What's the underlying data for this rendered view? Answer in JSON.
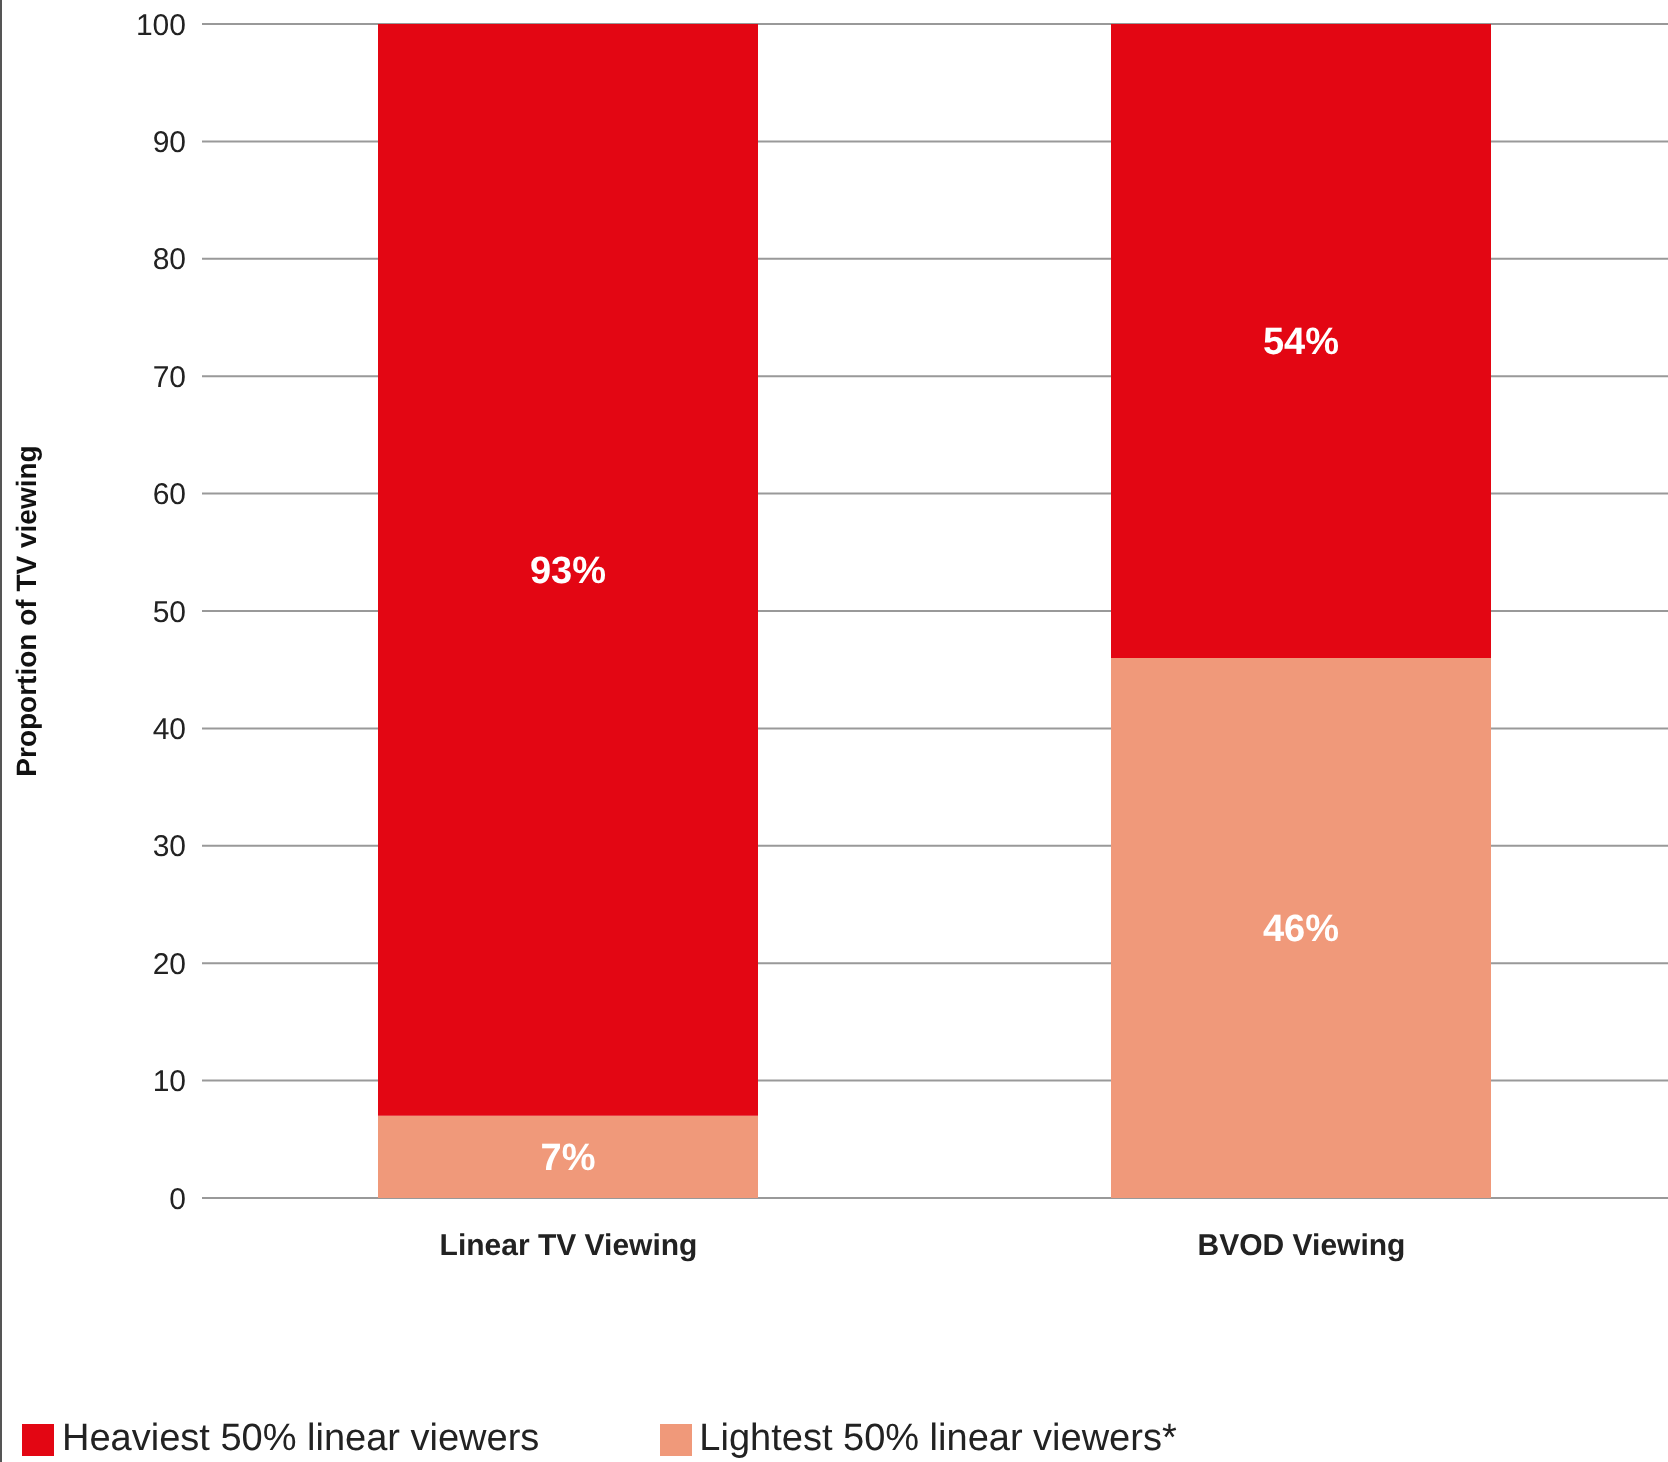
{
  "chart_data": {
    "type": "bar",
    "stacked": true,
    "categories": [
      "Linear TV Viewing",
      "BVOD Viewing"
    ],
    "series": [
      {
        "name": "Lightest 50% linear viewers*",
        "color": "#f0997a",
        "values": [
          7,
          46
        ],
        "value_labels": [
          "7%",
          "46%"
        ]
      },
      {
        "name": "Heaviest 50% linear viewers",
        "color": "#e30613",
        "values": [
          93,
          54
        ],
        "value_labels": [
          "93%",
          "54%"
        ]
      }
    ],
    "ylabel": "Proportion of TV viewing",
    "ylim": [
      0,
      100
    ],
    "yticks": [
      0,
      10,
      20,
      30,
      40,
      50,
      60,
      70,
      80,
      90,
      100
    ],
    "grid": "y",
    "legend": "bottom"
  }
}
